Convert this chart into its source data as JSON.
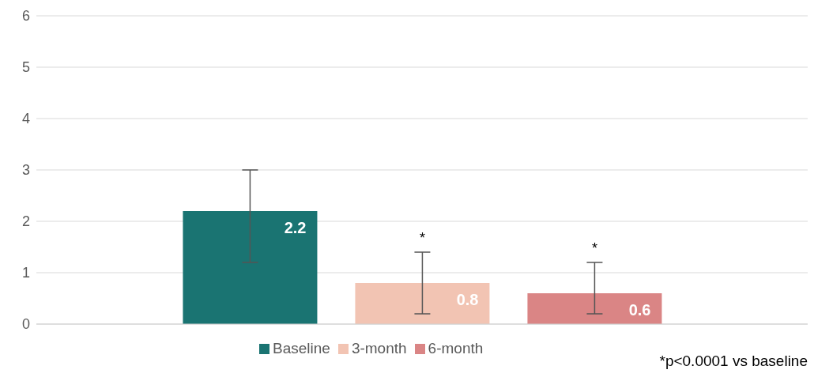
{
  "chart_data": {
    "type": "bar",
    "categories": [
      null
    ],
    "series": [
      {
        "name": "Baseline",
        "color": "#1a7472",
        "values": [
          2.2
        ],
        "errors": [
          [
            1.2,
            3.0
          ]
        ]
      },
      {
        "name": "3-month",
        "color": "#f2c4b3",
        "values": [
          0.8
        ],
        "errors": [
          [
            0.2,
            1.4
          ]
        ]
      },
      {
        "name": "6-month",
        "color": "#da8585",
        "values": [
          0.6
        ],
        "errors": [
          [
            0.2,
            1.2
          ]
        ]
      }
    ],
    "ylim": [
      0,
      6
    ],
    "yticks": [
      0,
      1,
      2,
      3,
      4,
      5,
      6
    ],
    "grid": "y",
    "legend": "bottom",
    "data_labels": true,
    "annotations": [
      "*",
      "*",
      "*p<0.0001 vs baseline"
    ]
  }
}
